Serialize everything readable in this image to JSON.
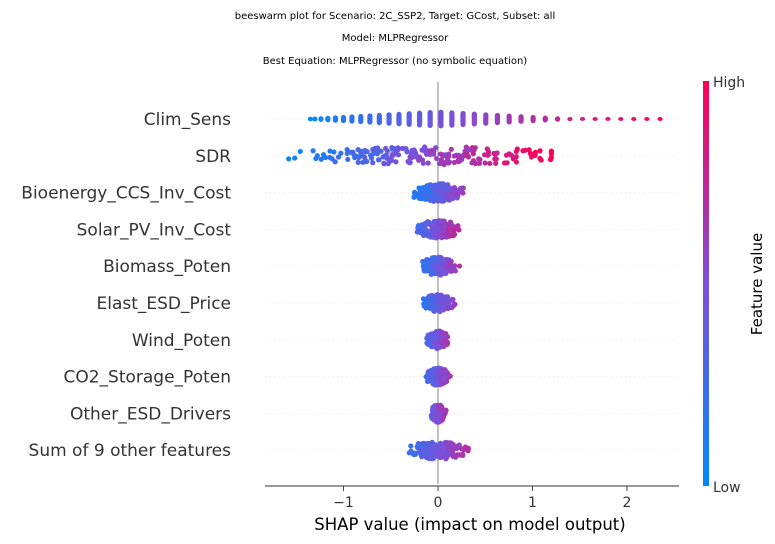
{
  "titles": {
    "line1": "beeswarm plot for Scenario: 2C_SSP2, Target: GCost, Subset: all",
    "line2": "Model: MLPRegressor",
    "line3": "Best Equation: MLPRegressor (no symbolic equation)"
  },
  "colorbar": {
    "high_label": "High",
    "low_label": "Low",
    "title": "Feature value",
    "low_color": "#008afb",
    "mid_color": "#7d4fd9",
    "high_color": "#ff0052"
  },
  "chart_data": {
    "type": "scatter",
    "subtype": "shap-beeswarm",
    "xlabel": "SHAP value (impact on model output)",
    "xlim": [
      -1.83,
      2.55
    ],
    "xticks": [
      {
        "value": -1,
        "label": "−1"
      },
      {
        "value": 0,
        "label": "0"
      },
      {
        "value": 1,
        "label": "1"
      },
      {
        "value": 2,
        "label": "2"
      }
    ],
    "zero_line": 0,
    "grid": false,
    "features": [
      {
        "name": "Clim_Sens",
        "min": -1.35,
        "max": 2.35,
        "mode": "banded",
        "spread": 0.3,
        "count": 130
      },
      {
        "name": "SDR",
        "min": -1.65,
        "max": 1.2,
        "mode": "swarm",
        "spread": 0.55,
        "count": 210
      },
      {
        "name": "Bioenergy_CCS_Inv_Cost",
        "min": -0.35,
        "max": 0.62,
        "mode": "swarm",
        "spread": 0.3,
        "count": 180
      },
      {
        "name": "Solar_PV_Inv_Cost",
        "min": -0.45,
        "max": 0.42,
        "mode": "swarm",
        "spread": 0.3,
        "count": 180
      },
      {
        "name": "Biomass_Poten",
        "min": -0.32,
        "max": 0.48,
        "mode": "swarm",
        "spread": 0.25,
        "count": 170
      },
      {
        "name": "Elast_ESD_Price",
        "min": -0.3,
        "max": 0.48,
        "mode": "swarm",
        "spread": 0.22,
        "count": 170
      },
      {
        "name": "Wind_Poten",
        "min": -0.3,
        "max": 0.32,
        "mode": "swarm",
        "spread": 0.2,
        "count": 170
      },
      {
        "name": "CO2_Storage_Poten",
        "min": -0.3,
        "max": 0.35,
        "mode": "swarm",
        "spread": 0.2,
        "count": 170
      },
      {
        "name": "Other_ESD_Drivers",
        "min": -0.28,
        "max": 0.25,
        "mode": "swarm",
        "spread": 0.15,
        "count": 150
      },
      {
        "name": "Sum of 9 other features",
        "min": -0.55,
        "max": 0.65,
        "mode": "swarm",
        "spread": 0.28,
        "count": 170
      }
    ]
  }
}
